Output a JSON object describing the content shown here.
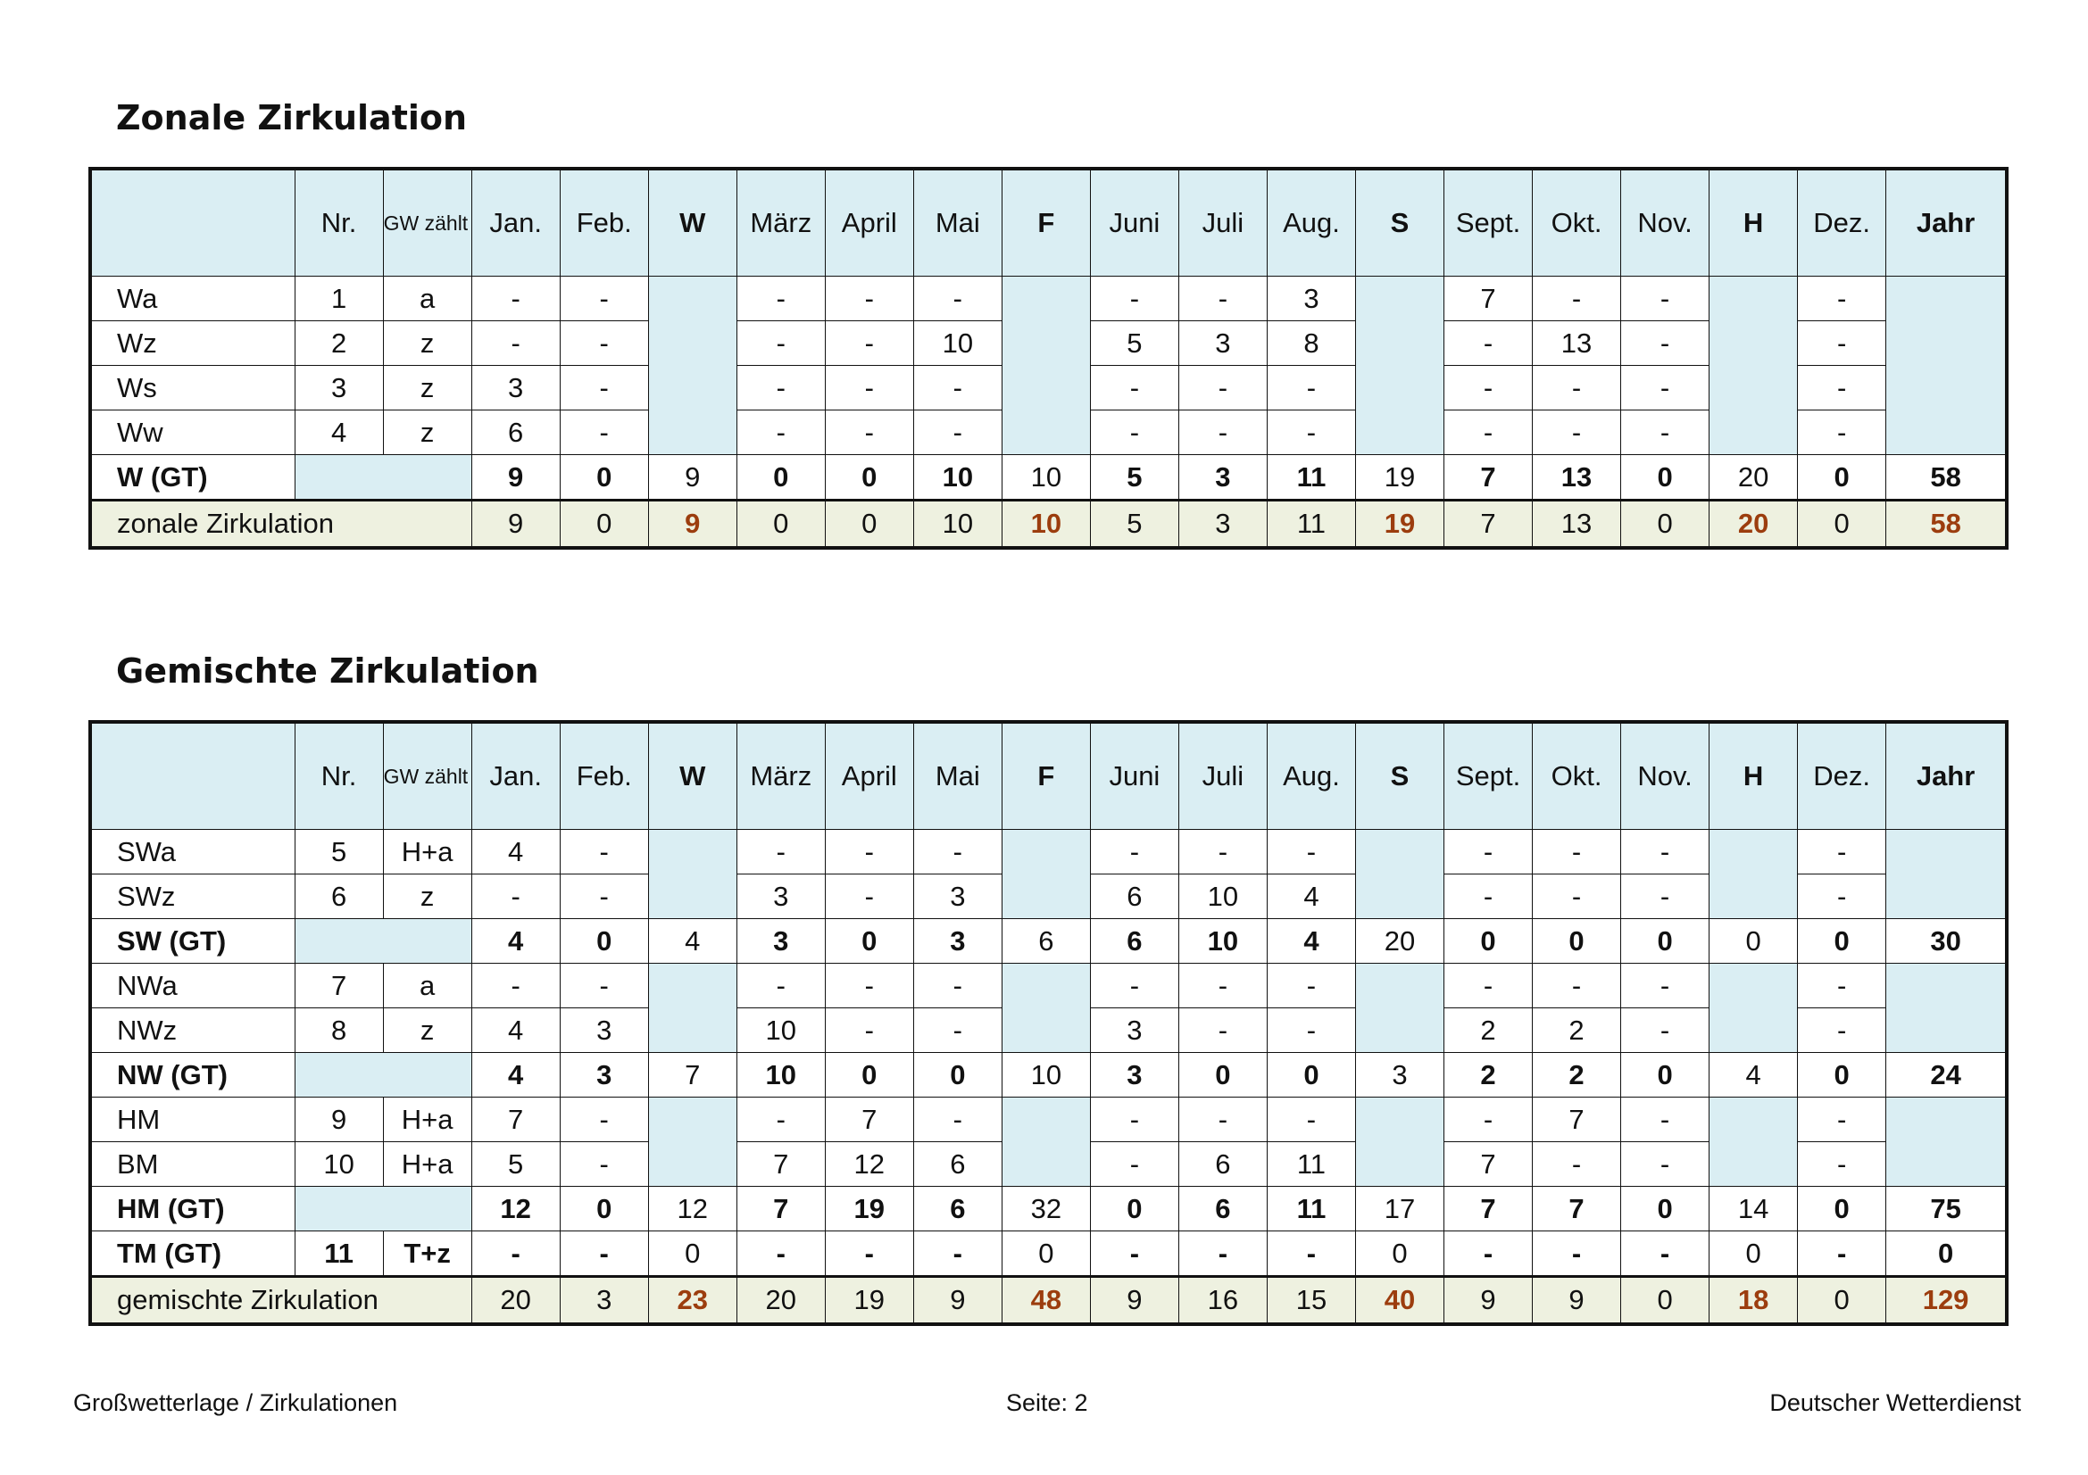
{
  "section1": {
    "title": "Zonale Zirkulation",
    "header": [
      "",
      "Nr.",
      "GW zählt als",
      "Jan.",
      "Feb.",
      "W",
      "März",
      "April",
      "Mai",
      "F",
      "Juni",
      "Juli",
      "Aug.",
      "S",
      "Sept.",
      "Okt.",
      "Nov.",
      "H",
      "Dez.",
      "Jahr"
    ],
    "rows": [
      {
        "type": "data",
        "label": "Wa",
        "nr": "1",
        "gw": "a",
        "jan": "-",
        "feb": "-",
        "mar": "-",
        "apr": "-",
        "mai": "-",
        "jun": "-",
        "jul": "-",
        "aug": "3",
        "sep": "7",
        "okt": "-",
        "nov": "-",
        "dez": "-"
      },
      {
        "type": "data",
        "label": "Wz",
        "nr": "2",
        "gw": "z",
        "jan": "-",
        "feb": "-",
        "mar": "-",
        "apr": "-",
        "mai": "10",
        "jun": "5",
        "jul": "3",
        "aug": "8",
        "sep": "-",
        "okt": "13",
        "nov": "-",
        "dez": "-"
      },
      {
        "type": "data",
        "label": "Ws",
        "nr": "3",
        "gw": "z",
        "jan": "3",
        "feb": "-",
        "mar": "-",
        "apr": "-",
        "mai": "-",
        "jun": "-",
        "jul": "-",
        "aug": "-",
        "sep": "-",
        "okt": "-",
        "nov": "-",
        "dez": "-"
      },
      {
        "type": "data",
        "label": "Ww",
        "nr": "4",
        "gw": "z",
        "jan": "6",
        "feb": "-",
        "mar": "-",
        "apr": "-",
        "mai": "-",
        "jun": "-",
        "jul": "-",
        "aug": "-",
        "sep": "-",
        "okt": "-",
        "nov": "-",
        "dez": "-"
      },
      {
        "type": "gt",
        "label": "W (GT)",
        "nr": "",
        "gw": "",
        "jan": "9",
        "feb": "0",
        "w": "9",
        "mar": "0",
        "apr": "0",
        "mai": "10",
        "f": "10",
        "jun": "5",
        "jul": "3",
        "aug": "11",
        "s": "19",
        "sep": "7",
        "okt": "13",
        "nov": "0",
        "h": "20",
        "dez": "0",
        "jahr": "58"
      }
    ],
    "total": {
      "label": "zonale Zirkulation",
      "jan": "9",
      "feb": "0",
      "w": "9",
      "mar": "0",
      "apr": "0",
      "mai": "10",
      "f": "10",
      "jun": "5",
      "jul": "3",
      "aug": "11",
      "s": "19",
      "sep": "7",
      "okt": "13",
      "nov": "0",
      "h": "20",
      "dez": "0",
      "jahr": "58"
    }
  },
  "section2": {
    "title": "Gemischte Zirkulation",
    "header": [
      "",
      "Nr.",
      "GW zählt als",
      "Jan.",
      "Feb.",
      "W",
      "März",
      "April",
      "Mai",
      "F",
      "Juni",
      "Juli",
      "Aug.",
      "S",
      "Sept.",
      "Okt.",
      "Nov.",
      "H",
      "Dez.",
      "Jahr"
    ],
    "rows": [
      {
        "type": "data",
        "label": "SWa",
        "nr": "5",
        "gw": "H+a",
        "jan": "4",
        "feb": "-",
        "mar": "-",
        "apr": "-",
        "mai": "-",
        "jun": "-",
        "jul": "-",
        "aug": "-",
        "sep": "-",
        "okt": "-",
        "nov": "-",
        "dez": "-"
      },
      {
        "type": "data",
        "label": "SWz",
        "nr": "6",
        "gw": "z",
        "jan": "-",
        "feb": "-",
        "mar": "3",
        "apr": "-",
        "mai": "3",
        "jun": "6",
        "jul": "10",
        "aug": "4",
        "sep": "-",
        "okt": "-",
        "nov": "-",
        "dez": "-"
      },
      {
        "type": "gt",
        "label": "SW (GT)",
        "nr": "",
        "gw": "",
        "jan": "4",
        "feb": "0",
        "w": "4",
        "mar": "3",
        "apr": "0",
        "mai": "3",
        "f": "6",
        "jun": "6",
        "jul": "10",
        "aug": "4",
        "s": "20",
        "sep": "0",
        "okt": "0",
        "nov": "0",
        "h": "0",
        "dez": "0",
        "jahr": "30"
      },
      {
        "type": "data",
        "label": "NWa",
        "nr": "7",
        "gw": "a",
        "jan": "-",
        "feb": "-",
        "mar": "-",
        "apr": "-",
        "mai": "-",
        "jun": "-",
        "jul": "-",
        "aug": "-",
        "sep": "-",
        "okt": "-",
        "nov": "-",
        "dez": "-"
      },
      {
        "type": "data",
        "label": "NWz",
        "nr": "8",
        "gw": "z",
        "jan": "4",
        "feb": "3",
        "mar": "10",
        "apr": "-",
        "mai": "-",
        "jun": "3",
        "jul": "-",
        "aug": "-",
        "sep": "2",
        "okt": "2",
        "nov": "-",
        "dez": "-"
      },
      {
        "type": "gt",
        "label": "NW (GT)",
        "nr": "",
        "gw": "",
        "jan": "4",
        "feb": "3",
        "w": "7",
        "mar": "10",
        "apr": "0",
        "mai": "0",
        "f": "10",
        "jun": "3",
        "jul": "0",
        "aug": "0",
        "s": "3",
        "sep": "2",
        "okt": "2",
        "nov": "0",
        "h": "4",
        "dez": "0",
        "jahr": "24"
      },
      {
        "type": "data",
        "label": "HM",
        "nr": "9",
        "gw": "H+a",
        "jan": "7",
        "feb": "-",
        "mar": "-",
        "apr": "7",
        "mai": "-",
        "jun": "-",
        "jul": "-",
        "aug": "-",
        "sep": "-",
        "okt": "7",
        "nov": "-",
        "dez": "-"
      },
      {
        "type": "data",
        "label": "BM",
        "nr": "10",
        "gw": "H+a",
        "jan": "5",
        "feb": "-",
        "mar": "7",
        "apr": "12",
        "mai": "6",
        "jun": "-",
        "jul": "6",
        "aug": "11",
        "sep": "7",
        "okt": "-",
        "nov": "-",
        "dez": "-"
      },
      {
        "type": "gt",
        "label": "HM (GT)",
        "nr": "",
        "gw": "",
        "jan": "12",
        "feb": "0",
        "w": "12",
        "mar": "7",
        "apr": "19",
        "mai": "6",
        "f": "32",
        "jun": "0",
        "jul": "6",
        "aug": "11",
        "s": "17",
        "sep": "7",
        "okt": "7",
        "nov": "0",
        "h": "14",
        "dez": "0",
        "jahr": "75"
      },
      {
        "type": "gt",
        "label": "TM (GT)",
        "nr": "11",
        "gw": "T+z",
        "jan": "-",
        "feb": "-",
        "w": "0",
        "mar": "-",
        "apr": "-",
        "mai": "-",
        "f": "0",
        "jun": "-",
        "jul": "-",
        "aug": "-",
        "s": "0",
        "sep": "-",
        "okt": "-",
        "nov": "-",
        "h": "0",
        "dez": "-",
        "jahr": "0"
      }
    ],
    "total": {
      "label": "gemischte Zirkulation",
      "jan": "20",
      "feb": "3",
      "w": "23",
      "mar": "20",
      "apr": "19",
      "mai": "9",
      "f": "48",
      "jun": "9",
      "jul": "16",
      "aug": "15",
      "s": "40",
      "sep": "9",
      "okt": "9",
      "nov": "0",
      "h": "18",
      "dez": "0",
      "jahr": "129"
    }
  },
  "footer": {
    "left": "Großwetterlage / Zirkulationen",
    "center": "Seite: 2",
    "right": "Deutscher Wetterdienst"
  },
  "colors": {
    "header_bg": "#daeef3",
    "total_bg": "#eef1e0",
    "highlight": "#9c3d0e"
  }
}
